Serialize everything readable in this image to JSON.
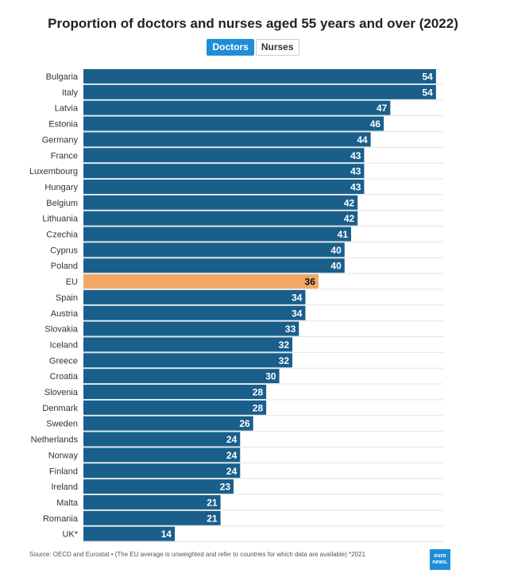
{
  "chart_data": {
    "type": "bar",
    "orientation": "horizontal",
    "title": "Proportion of doctors and nurses aged 55 years and over (2022)",
    "categories": [
      "Bulgaria",
      "Italy",
      "Latvia",
      "Estonia",
      "Germany",
      "France",
      "Luxembourg",
      "Hungary",
      "Belgium",
      "Lithuania",
      "Czechia",
      "Cyprus",
      "Poland",
      "EU",
      "Spain",
      "Austria",
      "Slovakia",
      "Iceland",
      "Greece",
      "Croatia",
      "Slovenia",
      "Denmark",
      "Sweden",
      "Netherlands",
      "Norway",
      "Finland",
      "Ireland",
      "Malta",
      "Romania",
      "UK*"
    ],
    "values": [
      54,
      54,
      47,
      46,
      44,
      43,
      43,
      43,
      42,
      42,
      41,
      40,
      40,
      36,
      34,
      34,
      33,
      32,
      32,
      30,
      28,
      28,
      26,
      24,
      24,
      24,
      23,
      21,
      21,
      14
    ],
    "highlight_category": "EU",
    "bar_color": "#1a5f8c",
    "highlight_color": "#f0a864",
    "xlim": [
      0,
      55
    ],
    "grid": true,
    "data_labels": true
  },
  "tabs": [
    {
      "label": "Doctors",
      "active": true
    },
    {
      "label": "Nurses",
      "active": false
    }
  ],
  "source": "Source: OECD and Eurostat • (The EU average is unweighted and refer to countries for which data are available) *2021",
  "logo": {
    "line1": "euro",
    "line2": "news."
  }
}
